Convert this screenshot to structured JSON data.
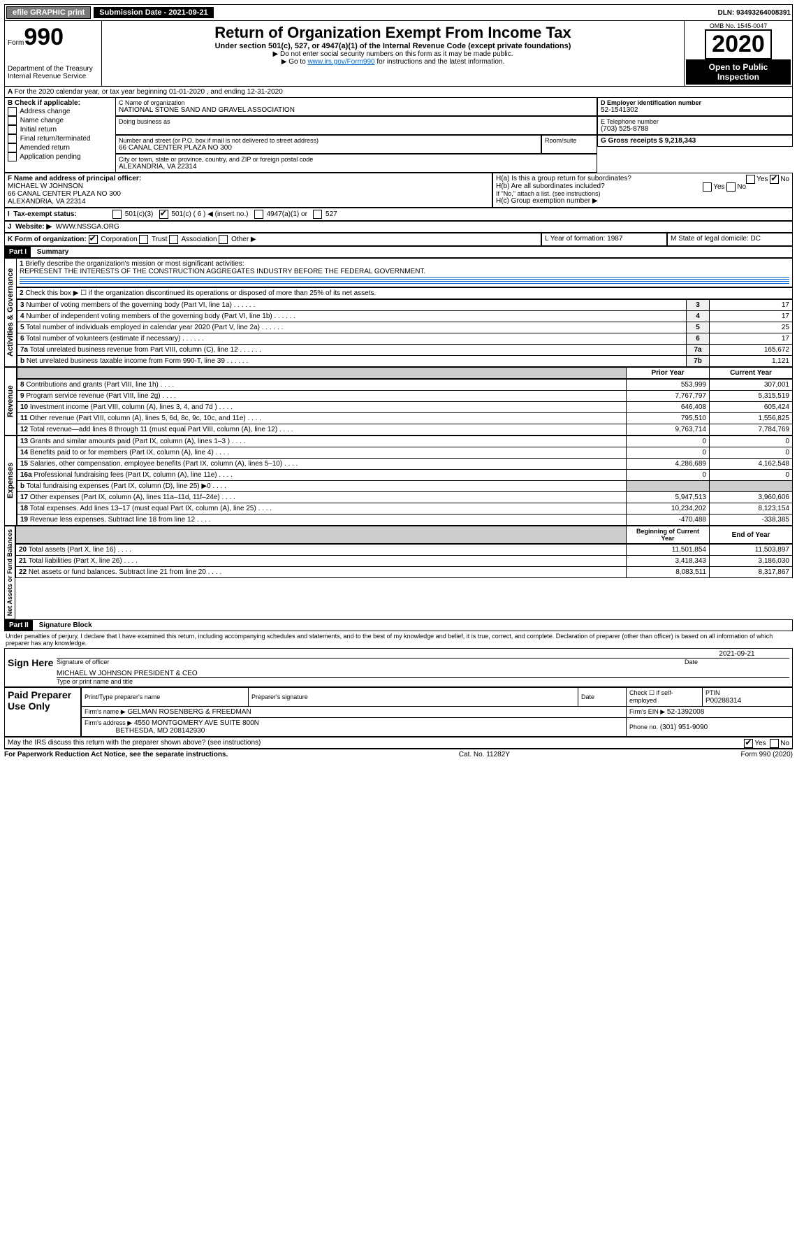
{
  "topbar": {
    "efile": "efile GRAPHIC print",
    "submission": "Submission Date - 2021-09-21",
    "dln": "DLN: 93493264008391"
  },
  "header": {
    "form_word": "Form",
    "form_no": "990",
    "dept": "Department of the Treasury",
    "irs": "Internal Revenue Service",
    "title": "Return of Organization Exempt From Income Tax",
    "subtitle": "Under section 501(c), 527, or 4947(a)(1) of the Internal Revenue Code (except private foundations)",
    "instr1": "▶ Do not enter social security numbers on this form as it may be made public.",
    "instr2_prefix": "▶ Go to ",
    "instr2_link": "www.irs.gov/Form990",
    "instr2_suffix": " for instructions and the latest information.",
    "omb": "OMB No. 1545-0047",
    "year": "2020",
    "open": "Open to Public Inspection"
  },
  "line_a": "For the 2020 calendar year, or tax year beginning 01-01-2020    , and ending 12-31-2020",
  "box_b": {
    "label": "B Check if applicable:",
    "items": [
      "Address change",
      "Name change",
      "Initial return",
      "Final return/terminated",
      "Amended return",
      "Application pending"
    ]
  },
  "box_c": {
    "label": "C Name of organization",
    "name": "NATIONAL STONE SAND AND GRAVEL ASSOCIATION",
    "dba_label": "Doing business as",
    "addr_label": "Number and street (or P.O. box if mail is not delivered to street address)",
    "room_label": "Room/suite",
    "addr": "66 CANAL CENTER PLAZA NO 300",
    "city_label": "City or town, state or province, country, and ZIP or foreign postal code",
    "city": "ALEXANDRIA, VA  22314"
  },
  "box_d": {
    "label": "D Employer identification number",
    "value": "52-1541302"
  },
  "box_e": {
    "label": "E Telephone number",
    "value": "(703) 525-8788"
  },
  "box_g": {
    "label": "G Gross receipts $ 9,218,343"
  },
  "box_f": {
    "label": "F  Name and address of principal officer:",
    "name": "MICHAEL W JOHNSON",
    "addr1": "66 CANAL CENTER PLAZA NO 300",
    "addr2": "ALEXANDRIA, VA  22314"
  },
  "box_h": {
    "ha": "H(a)  Is this a group return for subordinates?",
    "hb": "H(b)  Are all subordinates included?",
    "hb_note": "If \"No,\" attach a list. (see instructions)",
    "hc": "H(c)  Group exemption number ▶",
    "yes": "Yes",
    "no": "No"
  },
  "box_i": {
    "label": "Tax-exempt status:",
    "opts": [
      "501(c)(3)",
      "501(c) ( 6 ) ◀ (insert no.)",
      "4947(a)(1) or",
      "527"
    ]
  },
  "box_j": {
    "label": "Website: ▶",
    "value": "WWW.NSSGA.ORG"
  },
  "box_k": {
    "label": "K Form of organization:",
    "opts": [
      "Corporation",
      "Trust",
      "Association",
      "Other ▶"
    ]
  },
  "box_l": {
    "label": "L Year of formation: 1987"
  },
  "box_m": {
    "label": "M State of legal domicile: DC"
  },
  "part1": {
    "label": "Part I",
    "title": "Summary",
    "q1": "Briefly describe the organization's mission or most significant activities:",
    "a1": "REPRESENT THE INTERESTS OF THE CONSTRUCTION AGGREGATES INDUSTRY BEFORE THE FEDERAL GOVERNMENT.",
    "q2": "Check this box ▶ ☐  if the organization discontinued its operations or disposed of more than 25% of its net assets.",
    "rows_gov": [
      {
        "n": "3",
        "t": "Number of voting members of the governing body (Part VI, line 1a)",
        "c": "3",
        "v": "17"
      },
      {
        "n": "4",
        "t": "Number of independent voting members of the governing body (Part VI, line 1b)",
        "c": "4",
        "v": "17"
      },
      {
        "n": "5",
        "t": "Total number of individuals employed in calendar year 2020 (Part V, line 2a)",
        "c": "5",
        "v": "25"
      },
      {
        "n": "6",
        "t": "Total number of volunteers (estimate if necessary)",
        "c": "6",
        "v": "17"
      },
      {
        "n": "7a",
        "t": "Total unrelated business revenue from Part VIII, column (C), line 12",
        "c": "7a",
        "v": "165,672"
      },
      {
        "n": "b",
        "t": "Net unrelated business taxable income from Form 990-T, line 39",
        "c": "7b",
        "v": "1,121"
      }
    ],
    "hdr_prior": "Prior Year",
    "hdr_curr": "Current Year",
    "rows_rev": [
      {
        "n": "8",
        "t": "Contributions and grants (Part VIII, line 1h)",
        "p": "553,999",
        "c": "307,001"
      },
      {
        "n": "9",
        "t": "Program service revenue (Part VIII, line 2g)",
        "p": "7,767,797",
        "c": "5,315,519"
      },
      {
        "n": "10",
        "t": "Investment income (Part VIII, column (A), lines 3, 4, and 7d )",
        "p": "646,408",
        "c": "605,424"
      },
      {
        "n": "11",
        "t": "Other revenue (Part VIII, column (A), lines 5, 6d, 8c, 9c, 10c, and 11e)",
        "p": "795,510",
        "c": "1,556,825"
      },
      {
        "n": "12",
        "t": "Total revenue—add lines 8 through 11 (must equal Part VIII, column (A), line 12)",
        "p": "9,763,714",
        "c": "7,784,769"
      }
    ],
    "rows_exp": [
      {
        "n": "13",
        "t": "Grants and similar amounts paid (Part IX, column (A), lines 1–3 )",
        "p": "0",
        "c": "0"
      },
      {
        "n": "14",
        "t": "Benefits paid to or for members (Part IX, column (A), line 4)",
        "p": "0",
        "c": "0"
      },
      {
        "n": "15",
        "t": "Salaries, other compensation, employee benefits (Part IX, column (A), lines 5–10)",
        "p": "4,286,689",
        "c": "4,162,548"
      },
      {
        "n": "16a",
        "t": "Professional fundraising fees (Part IX, column (A), line 11e)",
        "p": "0",
        "c": "0"
      },
      {
        "n": "b",
        "t": "Total fundraising expenses (Part IX, column (D), line 25) ▶0",
        "p": "",
        "c": ""
      },
      {
        "n": "17",
        "t": "Other expenses (Part IX, column (A), lines 11a–11d, 11f–24e)",
        "p": "5,947,513",
        "c": "3,960,606"
      },
      {
        "n": "18",
        "t": "Total expenses. Add lines 13–17 (must equal Part IX, column (A), line 25)",
        "p": "10,234,202",
        "c": "8,123,154"
      },
      {
        "n": "19",
        "t": "Revenue less expenses. Subtract line 18 from line 12",
        "p": "-470,488",
        "c": "-338,385"
      }
    ],
    "hdr_beg": "Beginning of Current Year",
    "hdr_end": "End of Year",
    "rows_net": [
      {
        "n": "20",
        "t": "Total assets (Part X, line 16)",
        "p": "11,501,854",
        "c": "11,503,897"
      },
      {
        "n": "21",
        "t": "Total liabilities (Part X, line 26)",
        "p": "3,418,343",
        "c": "3,186,030"
      },
      {
        "n": "22",
        "t": "Net assets or fund balances. Subtract line 21 from line 20",
        "p": "8,083,511",
        "c": "8,317,867"
      }
    ],
    "side_gov": "Activities & Governance",
    "side_rev": "Revenue",
    "side_exp": "Expenses",
    "side_net": "Net Assets or Fund Balances"
  },
  "part2": {
    "label": "Part II",
    "title": "Signature Block",
    "decl": "Under penalties of perjury, I declare that I have examined this return, including accompanying schedules and statements, and to the best of my knowledge and belief, it is true, correct, and complete. Declaration of preparer (other than officer) is based on all information of which preparer has any knowledge.",
    "sign_here": "Sign Here",
    "sig_officer": "Signature of officer",
    "sig_date": "2021-09-21",
    "date_label": "Date",
    "officer_name": "MICHAEL W JOHNSON  PRESIDENT & CEO",
    "type_name": "Type or print name and title",
    "paid": "Paid Preparer Use Only",
    "pp_name_label": "Print/Type preparer's name",
    "pp_sig_label": "Preparer's signature",
    "pp_date_label": "Date",
    "pp_check": "Check ☐ if self-employed",
    "ptin_label": "PTIN",
    "ptin": "P00288314",
    "firm_name_label": "Firm's name    ▶",
    "firm_name": "GELMAN ROSENBERG & FREEDMAN",
    "firm_ein_label": "Firm's EIN ▶",
    "firm_ein": "52-1392008",
    "firm_addr_label": "Firm's address ▶",
    "firm_addr1": "4550 MONTGOMERY AVE SUITE 800N",
    "firm_addr2": "BETHESDA, MD  208142930",
    "phone_label": "Phone no.",
    "phone": "(301) 951-9090",
    "discuss": "May the IRS discuss this return with the preparer shown above? (see instructions)",
    "discuss_yes": "Yes",
    "discuss_no": "No"
  },
  "footer": {
    "pra": "For Paperwork Reduction Act Notice, see the separate instructions.",
    "cat": "Cat. No. 11282Y",
    "form": "Form 990 (2020)"
  }
}
